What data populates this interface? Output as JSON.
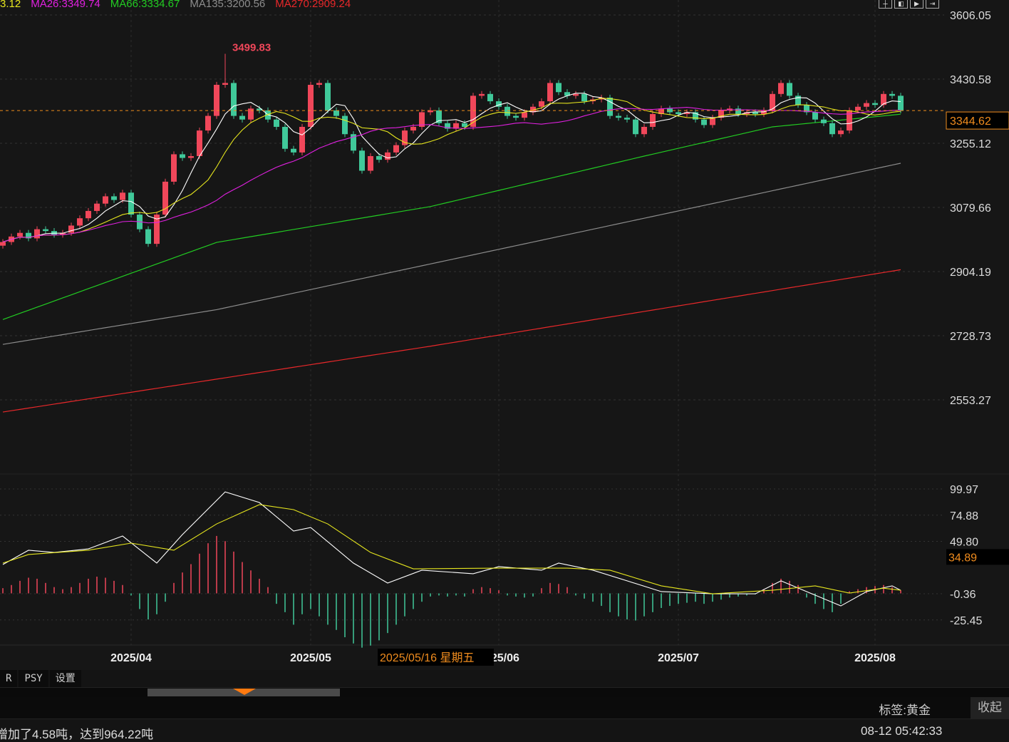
{
  "legend": {
    "ma10": "3.12",
    "ma26": "MA26:3349.74",
    "ma66": "MA66:3334.67",
    "ma135": "MA135:3200.56",
    "ma270": "MA270:2909.24"
  },
  "colors": {
    "up": "#f0475a",
    "down": "#40c99a",
    "ma5": "#ffffff",
    "ma10": "#e6e61e",
    "ma26": "#e020e0",
    "ma66": "#22cc22",
    "ma135": "#8c8c8c",
    "ma270": "#e8282a",
    "price_line": "#f08c1e",
    "background": "#161616"
  },
  "top_icons": [
    "crosshair-icon",
    "zoom-in-icon",
    "zoom-out-icon",
    "move-icon"
  ],
  "chart_data": [
    {
      "type": "candlestick",
      "title": "",
      "price_axis_ticks": [
        "3606.05",
        "3430.58",
        "3255.12",
        "3079.66",
        "2904.19",
        "2728.73",
        "2553.27"
      ],
      "ylim": [
        2553.27,
        3606.05
      ],
      "current_price": "3344.62",
      "max_annotation": {
        "index": 26,
        "value": "3499.83"
      },
      "x_tick_labels": [
        {
          "index": 15,
          "label": "2025/04"
        },
        {
          "index": 36,
          "label": "2025/05"
        },
        {
          "index": 58,
          "label": "2025/06"
        },
        {
          "index": 79,
          "label": "2025/07"
        },
        {
          "index": 102,
          "label": "2025/08"
        }
      ],
      "crosshair_date": "2025/05/16 星期五",
      "close": [
        2985,
        3000,
        3010,
        2995,
        3020,
        3015,
        3005,
        3010,
        3030,
        3050,
        3070,
        3090,
        3110,
        3100,
        3120,
        3060,
        3020,
        2980,
        3060,
        3150,
        3225,
        3215,
        3220,
        3290,
        3330,
        3415,
        3420,
        3330,
        3320,
        3350,
        3345,
        3320,
        3300,
        3240,
        3230,
        3300,
        3415,
        3420,
        3345,
        3330,
        3280,
        3235,
        3180,
        3220,
        3210,
        3230,
        3250,
        3290,
        3300,
        3340,
        3345,
        3310,
        3295,
        3310,
        3300,
        3385,
        3390,
        3370,
        3355,
        3330,
        3325,
        3340,
        3355,
        3370,
        3420,
        3395,
        3385,
        3390,
        3370,
        3375,
        3380,
        3330,
        3325,
        3320,
        3280,
        3300,
        3335,
        3350,
        3340,
        3335,
        3340,
        3320,
        3305,
        3325,
        3345,
        3350,
        3335,
        3340,
        3335,
        3345,
        3390,
        3420,
        3385,
        3360,
        3340,
        3320,
        3310,
        3280,
        3290,
        3345,
        3355,
        3365,
        3360,
        3390,
        3385,
        3345
      ],
      "ma_long": {
        "ma66": {
          "index": [
            0,
            25,
            50,
            75,
            90,
            105
          ],
          "value": [
            2773,
            2984,
            3082,
            3220,
            3300,
            3334.67
          ]
        },
        "ma135": {
          "index": [
            0,
            25,
            50,
            75,
            105
          ],
          "value": [
            2705,
            2800,
            2925,
            3050,
            3200.56
          ]
        },
        "ma270": {
          "index": [
            0,
            50,
            105
          ],
          "value": [
            2520,
            2700,
            2909.24
          ]
        }
      }
    },
    {
      "type": "line+bar",
      "title": "",
      "axis_ticks": [
        "99.97",
        "74.88",
        "49.80",
        "-0.36",
        "-25.45"
      ],
      "ylim": [
        -25.45,
        99.97
      ],
      "current_value": "34.89",
      "white_line": {
        "index": [
          0,
          3,
          6,
          10,
          14,
          18,
          21,
          26,
          30,
          34,
          36,
          41,
          45,
          49,
          55,
          58,
          63,
          65,
          69,
          73,
          77,
          83,
          88,
          91,
          94,
          98,
          101,
          104,
          105
        ],
        "value": [
          27.6,
          41.3,
          39.2,
          42.6,
          54.9,
          29,
          56.3,
          97.2,
          87,
          59.7,
          63.1,
          29,
          9.9,
          22.2,
          18.8,
          25.6,
          22.2,
          29,
          22.2,
          12,
          1.7,
          -0.4,
          -0.4,
          12,
          1.7,
          -12,
          1.7,
          7.2,
          3
        ]
      },
      "yellow_line": {
        "index": [
          0,
          3,
          10,
          15,
          20,
          25,
          30,
          34,
          38,
          43,
          48,
          58,
          66,
          71,
          77,
          83,
          90,
          95,
          99,
          103,
          105
        ],
        "value": [
          29,
          37.2,
          41.3,
          48.1,
          41.3,
          66.5,
          85,
          80.2,
          66.5,
          39.2,
          23.5,
          24.2,
          24.2,
          22.2,
          7.2,
          -0.4,
          3,
          7.2,
          0.3,
          5,
          3
        ]
      },
      "histogram": [
        5,
        8,
        12,
        15,
        14,
        10,
        6,
        4,
        6,
        10,
        14,
        16,
        15,
        12,
        8,
        -2,
        -15,
        -25,
        -20,
        -8,
        10,
        20,
        28,
        38,
        48,
        55,
        50,
        40,
        30,
        22,
        14,
        6,
        -10,
        -18,
        -30,
        -20,
        -15,
        -22,
        -30,
        -35,
        -42,
        -48,
        -52,
        -50,
        -45,
        -38,
        -30,
        -22,
        -15,
        -8,
        -3,
        -2,
        -3,
        -2,
        -3,
        4,
        6,
        5,
        3,
        -2,
        -3,
        -4,
        -3,
        5,
        10,
        9,
        6,
        -2,
        -5,
        -8,
        -12,
        -18,
        -22,
        -25,
        -26,
        -22,
        -18,
        -14,
        -12,
        -10,
        -9,
        -8,
        -10,
        -8,
        -6,
        -4,
        -3,
        -2,
        -1,
        4,
        10,
        14,
        12,
        8,
        -4,
        -10,
        -15,
        -18,
        -10,
        2,
        4,
        6,
        7,
        8,
        6,
        3
      ]
    }
  ],
  "tabs": [
    "R",
    "PSY",
    "设置"
  ],
  "tag_label": "标签:黄金",
  "collapse_label": "收起",
  "news": {
    "text": "增加了4.58吨，达到964.22吨",
    "time": "08-12 05:42:33"
  }
}
